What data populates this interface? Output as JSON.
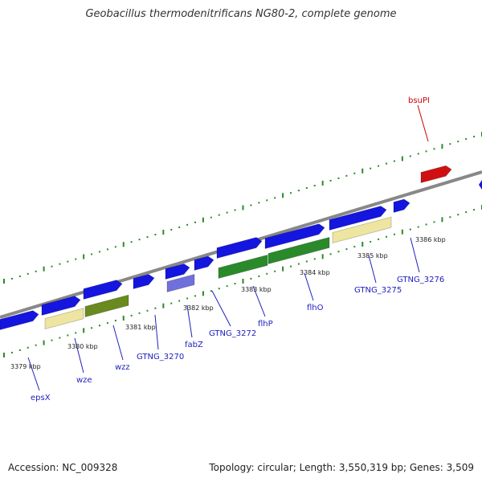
{
  "title": "Geobacillus thermodenitrificans NG80-2, complete genome",
  "footer": {
    "accession": "Accession: NC_009328",
    "summary": "Topology: circular; Length: 3,550,319 bp; Genes: 3,509"
  },
  "colors": {
    "backbone": "#888888",
    "dots": "#2a8a2a",
    "gene_default": "#1515e0",
    "gene_label": "#2020c0",
    "gene_highlight": "#d01010",
    "label_highlight": "#cc0000",
    "gene_green": "#2a8a2a",
    "gene_olive": "#6a8a20",
    "gene_pale": "#eee6a0",
    "gene_lavender": "#7070dd"
  },
  "scale_labels": [
    "3379 kbp",
    "3380 kbp",
    "3381 kbp",
    "3382 kbp",
    "3383 kbp",
    "3384 kbp",
    "3385 kbp",
    "3386 kbp"
  ],
  "gene_labels": [
    "epsX",
    "wze",
    "wzz",
    "GTNG_3270",
    "fabZ",
    "GTNG_3272",
    "flhP",
    "flhO",
    "GTNG_3275",
    "GTNG_3276",
    "bsuPI"
  ]
}
